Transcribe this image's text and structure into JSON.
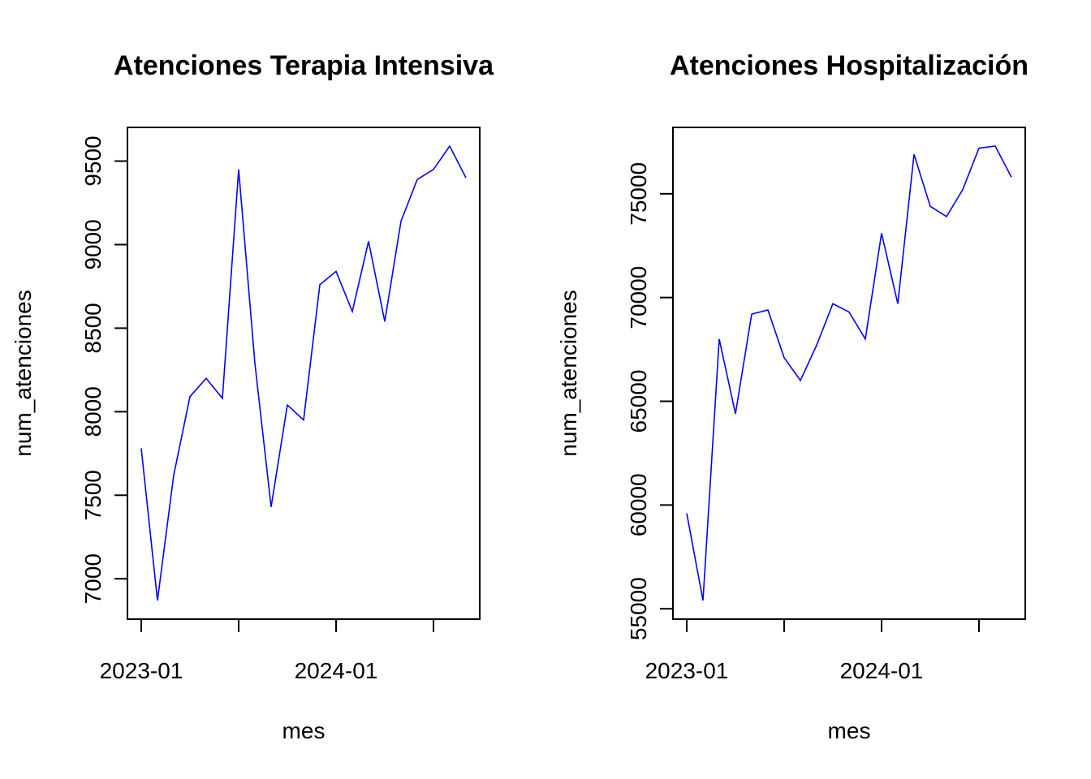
{
  "chart_data": [
    {
      "type": "line",
      "title": "Atenciones Terapia Intensiva",
      "xlabel": "mes",
      "ylabel": "num_atenciones",
      "x": [
        "2023-01",
        "2023-02",
        "2023-03",
        "2023-04",
        "2023-05",
        "2023-06",
        "2023-07",
        "2023-08",
        "2023-09",
        "2023-10",
        "2023-11",
        "2023-12",
        "2024-01",
        "2024-02",
        "2024-03",
        "2024-04",
        "2024-05",
        "2024-06",
        "2024-07",
        "2024-08",
        "2024-09"
      ],
      "values": [
        7780,
        6870,
        7620,
        8090,
        8200,
        8080,
        9450,
        8290,
        7430,
        8040,
        7950,
        8760,
        8840,
        8600,
        9020,
        8540,
        9140,
        9390,
        9450,
        9590,
        9400
      ],
      "x_tick_labels": [
        "2023-01",
        "2024-01"
      ],
      "x_ticks": [
        "2023-01",
        "2023-07",
        "2024-01",
        "2024-07"
      ],
      "y_ticks": [
        7000,
        7500,
        8000,
        8500,
        9000,
        9500
      ],
      "ylim": [
        6870,
        9590
      ],
      "line_color": "#0000ff",
      "grid": false
    },
    {
      "type": "line",
      "title": "Atenciones Hospitalización",
      "xlabel": "mes",
      "ylabel": "num_atenciones",
      "x": [
        "2023-01",
        "2023-02",
        "2023-03",
        "2023-04",
        "2023-05",
        "2023-06",
        "2023-07",
        "2023-08",
        "2023-09",
        "2023-10",
        "2023-11",
        "2023-12",
        "2024-01",
        "2024-02",
        "2024-03",
        "2024-04",
        "2024-05",
        "2024-06",
        "2024-07",
        "2024-08",
        "2024-09"
      ],
      "values": [
        59600,
        55400,
        68000,
        64400,
        69200,
        69400,
        67100,
        66000,
        67700,
        69700,
        69300,
        68000,
        73100,
        69700,
        76900,
        74400,
        73900,
        75200,
        77200,
        77300,
        75800
      ],
      "x_tick_labels": [
        "2023-01",
        "2024-01"
      ],
      "x_ticks": [
        "2023-01",
        "2023-07",
        "2024-01",
        "2024-07"
      ],
      "y_ticks": [
        55000,
        60000,
        65000,
        70000,
        75000
      ],
      "ylim": [
        55400,
        77300
      ],
      "line_color": "#0000ff",
      "grid": false
    }
  ]
}
